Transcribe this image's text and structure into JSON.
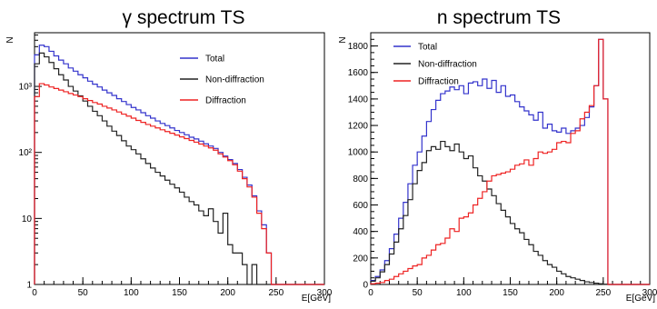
{
  "chart_data": [
    {
      "type": "line",
      "title": "γ spectrum TS",
      "xlabel": "E[GeV]",
      "ylabel": "N",
      "yscale": "log",
      "xlim": [
        0,
        300
      ],
      "ylim": [
        1,
        6500
      ],
      "x_ticks": [
        "0",
        "50",
        "100",
        "150",
        "200",
        "250",
        "300"
      ],
      "y_ticks": [
        {
          "value": 1,
          "label": "1"
        },
        {
          "value": 10,
          "label": "10"
        },
        {
          "value": 100,
          "label": "10²"
        },
        {
          "value": 1000,
          "label": "10³"
        }
      ],
      "legend_position": "top-right",
      "grid": false,
      "bin_edges": [
        0,
        5,
        10,
        15,
        20,
        25,
        30,
        35,
        40,
        45,
        50,
        55,
        60,
        65,
        70,
        75,
        80,
        85,
        90,
        95,
        100,
        105,
        110,
        115,
        120,
        125,
        130,
        135,
        140,
        145,
        150,
        155,
        160,
        165,
        170,
        175,
        180,
        185,
        190,
        195,
        200,
        205,
        210,
        215,
        220,
        225,
        230,
        235,
        240,
        245,
        250,
        255,
        260,
        265,
        270,
        275,
        280,
        285,
        290,
        295,
        300
      ],
      "series": [
        {
          "name": "Total",
          "color": "#3333cc",
          "values": [
            3000,
            4200,
            4000,
            3400,
            2900,
            2500,
            2200,
            1900,
            1700,
            1500,
            1350,
            1200,
            1080,
            980,
            880,
            800,
            730,
            650,
            590,
            530,
            480,
            440,
            400,
            360,
            330,
            300,
            275,
            255,
            235,
            215,
            200,
            185,
            170,
            160,
            148,
            135,
            125,
            115,
            100,
            88,
            78,
            68,
            55,
            42,
            32,
            22,
            13,
            8,
            3,
            0,
            0,
            0,
            0,
            0,
            0,
            0,
            0,
            0,
            0,
            0
          ]
        },
        {
          "name": "Non-diffraction",
          "color": "#222222",
          "values": [
            2200,
            3200,
            2800,
            2300,
            1850,
            1500,
            1250,
            1000,
            850,
            720,
            600,
            500,
            420,
            360,
            300,
            250,
            210,
            180,
            150,
            125,
            110,
            95,
            80,
            68,
            58,
            50,
            44,
            38,
            33,
            29,
            25,
            21,
            18,
            16,
            13,
            11,
            14,
            9,
            6,
            12,
            4,
            3,
            3,
            2,
            1,
            2,
            0,
            0,
            0,
            0,
            0,
            0,
            0,
            0,
            0,
            0,
            0,
            0,
            0,
            0
          ]
        },
        {
          "name": "Diffraction",
          "color": "#ee2222",
          "values": [
            700,
            1100,
            1050,
            980,
            930,
            880,
            830,
            780,
            740,
            700,
            650,
            610,
            570,
            540,
            500,
            470,
            440,
            410,
            380,
            355,
            330,
            305,
            285,
            265,
            250,
            235,
            220,
            207,
            195,
            183,
            172,
            162,
            152,
            143,
            134,
            125,
            117,
            108,
            95,
            85,
            75,
            65,
            52,
            40,
            30,
            21,
            12,
            7,
            3,
            0,
            0,
            0,
            0,
            0,
            0,
            0,
            0,
            0,
            0,
            0
          ]
        }
      ]
    },
    {
      "type": "line",
      "title": "n spectrum TS",
      "xlabel": "E[GeV]",
      "ylabel": "N",
      "yscale": "linear",
      "xlim": [
        0,
        300
      ],
      "ylim": [
        0,
        1900
      ],
      "x_ticks": [
        "0",
        "50",
        "100",
        "150",
        "200",
        "250",
        "300"
      ],
      "y_ticks": [
        {
          "value": 0,
          "label": "0"
        },
        {
          "value": 200,
          "label": "200"
        },
        {
          "value": 400,
          "label": "400"
        },
        {
          "value": 600,
          "label": "600"
        },
        {
          "value": 800,
          "label": "800"
        },
        {
          "value": 1000,
          "label": "1000"
        },
        {
          "value": 1200,
          "label": "1200"
        },
        {
          "value": 1400,
          "label": "1400"
        },
        {
          "value": 1600,
          "label": "1600"
        },
        {
          "value": 1800,
          "label": "1800"
        }
      ],
      "legend_position": "top-left",
      "grid": false,
      "bin_edges": [
        0,
        5,
        10,
        15,
        20,
        25,
        30,
        35,
        40,
        45,
        50,
        55,
        60,
        65,
        70,
        75,
        80,
        85,
        90,
        95,
        100,
        105,
        110,
        115,
        120,
        125,
        130,
        135,
        140,
        145,
        150,
        155,
        160,
        165,
        170,
        175,
        180,
        185,
        190,
        195,
        200,
        205,
        210,
        215,
        220,
        225,
        230,
        235,
        240,
        245,
        250,
        255,
        260,
        265,
        270,
        275,
        280,
        285,
        290,
        295,
        300
      ],
      "series": [
        {
          "name": "Total",
          "color": "#3333cc",
          "values": [
            30,
            60,
            110,
            180,
            270,
            380,
            500,
            620,
            760,
            900,
            1000,
            1120,
            1230,
            1320,
            1390,
            1440,
            1460,
            1490,
            1470,
            1500,
            1440,
            1520,
            1530,
            1500,
            1550,
            1480,
            1540,
            1450,
            1500,
            1420,
            1430,
            1380,
            1340,
            1310,
            1280,
            1240,
            1300,
            1180,
            1210,
            1160,
            1150,
            1180,
            1140,
            1160,
            1180,
            1200,
            1260,
            1340,
            1500,
            1850,
            1400,
            0,
            0,
            0,
            0,
            0,
            0,
            0,
            0,
            0
          ]
        },
        {
          "name": "Non-diffraction",
          "color": "#222222",
          "values": [
            25,
            50,
            95,
            150,
            230,
            320,
            420,
            520,
            640,
            760,
            860,
            920,
            1010,
            1040,
            1020,
            1080,
            1040,
            1010,
            1060,
            1000,
            950,
            970,
            880,
            820,
            780,
            720,
            670,
            610,
            560,
            510,
            460,
            420,
            390,
            340,
            300,
            250,
            220,
            180,
            150,
            130,
            100,
            80,
            60,
            50,
            40,
            30,
            20,
            15,
            10,
            5,
            2,
            0,
            0,
            0,
            0,
            0,
            0,
            0,
            0,
            0
          ]
        },
        {
          "name": "Diffraction",
          "color": "#ee2222",
          "values": [
            5,
            10,
            15,
            30,
            40,
            60,
            80,
            100,
            120,
            140,
            150,
            200,
            220,
            260,
            300,
            310,
            350,
            420,
            400,
            500,
            510,
            540,
            600,
            650,
            700,
            780,
            820,
            830,
            840,
            850,
            870,
            900,
            910,
            940,
            900,
            950,
            1000,
            990,
            1000,
            1020,
            1070,
            1080,
            1070,
            1140,
            1160,
            1250,
            1300,
            1350,
            1500,
            1850,
            1400,
            0,
            0,
            0,
            0,
            0,
            0,
            0,
            0,
            0
          ]
        }
      ]
    }
  ]
}
